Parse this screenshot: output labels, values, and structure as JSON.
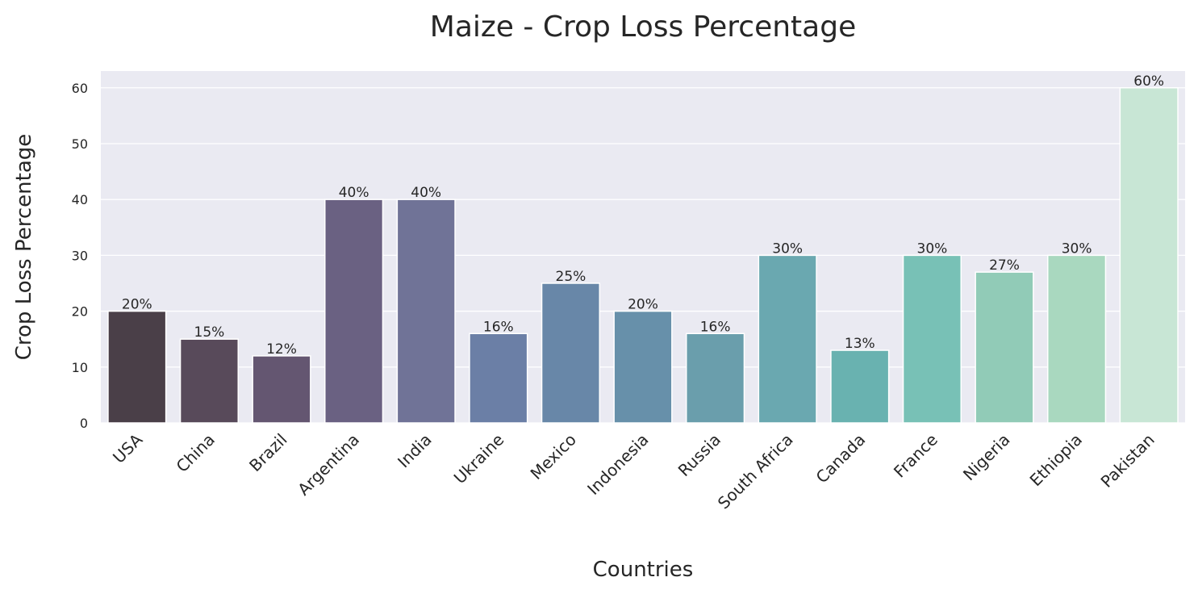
{
  "chart_data": {
    "type": "bar",
    "title": "Maize - Crop Loss Percentage",
    "xlabel": "Countries",
    "ylabel": "Crop Loss Percentage",
    "categories": [
      "USA",
      "China",
      "Brazil",
      "Argentina",
      "India",
      "Ukraine",
      "Mexico",
      "Indonesia",
      "Russia",
      "South Africa",
      "Canada",
      "France",
      "Nigeria",
      "Ethiopia",
      "Pakistan"
    ],
    "values": [
      20,
      15,
      12,
      40,
      40,
      16,
      25,
      20,
      16,
      30,
      13,
      30,
      27,
      30,
      60
    ],
    "data_labels": [
      "20%",
      "15%",
      "12%",
      "40%",
      "40%",
      "16%",
      "25%",
      "20%",
      "16%",
      "30%",
      "13%",
      "30%",
      "27%",
      "30%",
      "60%"
    ],
    "ylim": [
      0,
      63
    ],
    "yticks": [
      0,
      10,
      20,
      30,
      40,
      50,
      60
    ],
    "grid": true,
    "bar_colors": [
      "#4a3f48",
      "#584a5a",
      "#645671",
      "#6a6182",
      "#707397",
      "#6b7fa6",
      "#6887a8",
      "#6790aa",
      "#6a9eac",
      "#6aa8b0",
      "#69b2b0",
      "#78c1b6",
      "#91cbb7",
      "#a9d8bf",
      "#c8e6d5"
    ],
    "background_color": "#eaeaf2"
  }
}
